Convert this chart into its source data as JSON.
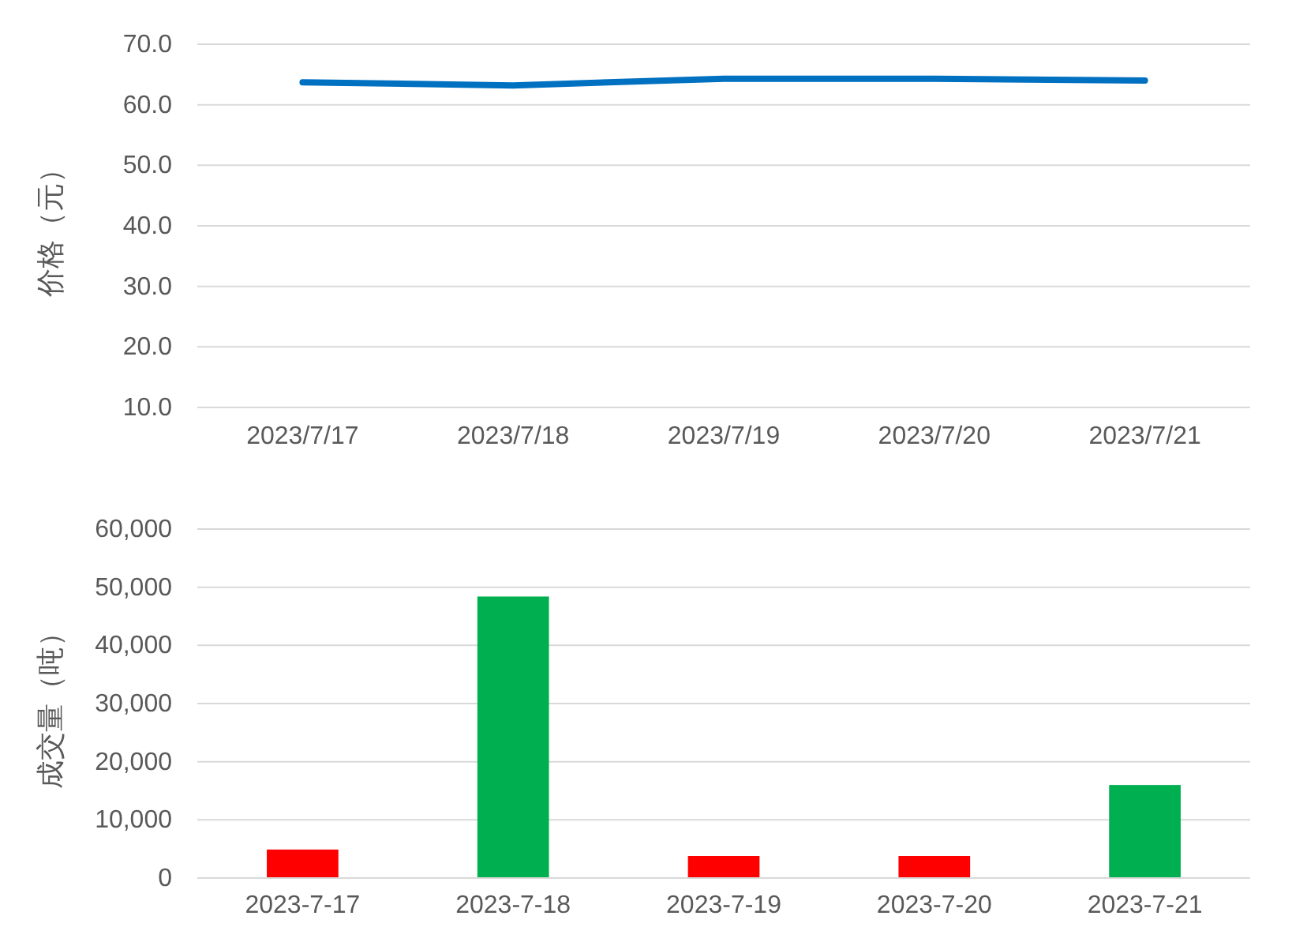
{
  "chart_data": [
    {
      "type": "line",
      "ylabel": "价格（元）",
      "categories": [
        "2023/7/17",
        "2023/7/18",
        "2023/7/19",
        "2023/7/20",
        "2023/7/21"
      ],
      "series": [
        {
          "color": "#0070c0",
          "values": [
            63.7,
            63.2,
            64.3,
            64.3,
            64.0
          ]
        }
      ],
      "ylim": [
        10,
        70
      ],
      "yticks": [
        {
          "value": 10,
          "label": "10.0"
        },
        {
          "value": 20,
          "label": "20.0"
        },
        {
          "value": 30,
          "label": "30.0"
        },
        {
          "value": 40,
          "label": "40.0"
        },
        {
          "value": 50,
          "label": "50.0"
        },
        {
          "value": 60,
          "label": "60.0"
        },
        {
          "value": 70,
          "label": "70.0"
        }
      ],
      "grid": "y",
      "marker": "none",
      "line_style": "solid"
    },
    {
      "type": "bar",
      "ylabel": "成交量（吨）",
      "categories": [
        "2023-7-17",
        "2023-7-18",
        "2023-7-19",
        "2023-7-20",
        "2023-7-21"
      ],
      "values": [
        4900,
        48400,
        3800,
        3800,
        16000
      ],
      "colors": [
        "#ff0000",
        "#00b050",
        "#ff0000",
        "#ff0000",
        "#00b050"
      ],
      "ylim": [
        0,
        60000
      ],
      "yticks": [
        0,
        {
          "value": 10000,
          "label": "10,000"
        },
        {
          "value": 20000,
          "label": "20,000"
        },
        {
          "value": 30000,
          "label": "30,000"
        },
        {
          "value": 40000,
          "label": "40,000"
        },
        {
          "value": 50000,
          "label": "50,000"
        },
        {
          "value": 60000,
          "label": "60,000"
        }
      ],
      "grid": "y"
    }
  ]
}
